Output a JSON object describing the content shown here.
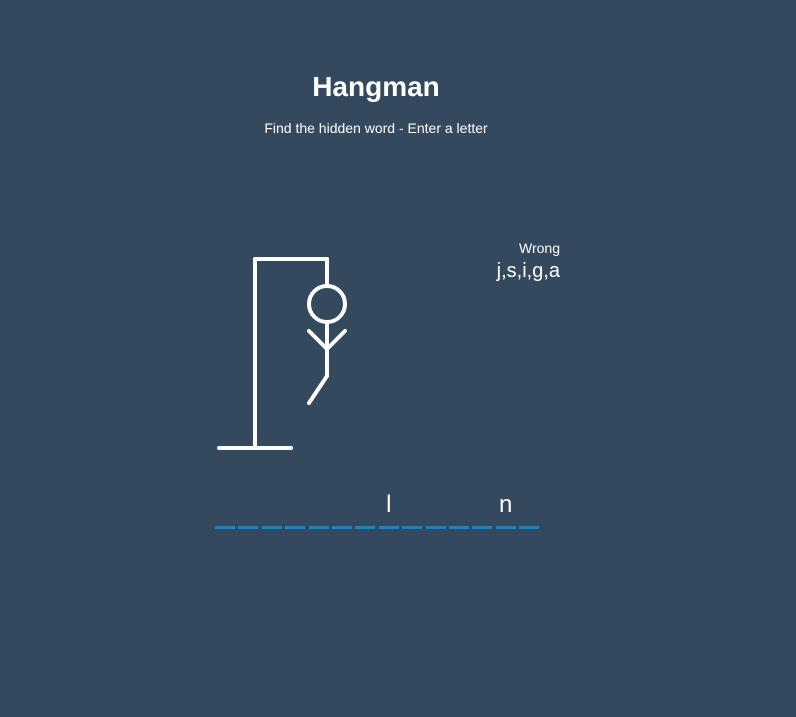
{
  "header": {
    "title": "Hangman",
    "subtitle": "Find the hidden word - Enter a letter"
  },
  "wrong": {
    "label": "Wrong",
    "letters": [
      "j",
      "s",
      "i",
      "g",
      "a"
    ],
    "letters_text": "j,s,i,g,a"
  },
  "word": {
    "slots": [
      "",
      "",
      "",
      "",
      "",
      "",
      "",
      "l",
      "",
      "",
      "",
      "",
      "n",
      "",
      ""
    ]
  },
  "hangman": {
    "parts_shown": [
      "head",
      "body",
      "left-arm",
      "right-arm",
      "left-leg"
    ],
    "wrong_count": 5
  },
  "colors": {
    "background": "#34495e",
    "text": "#ffffff",
    "slot_underline": "#2980b9"
  }
}
